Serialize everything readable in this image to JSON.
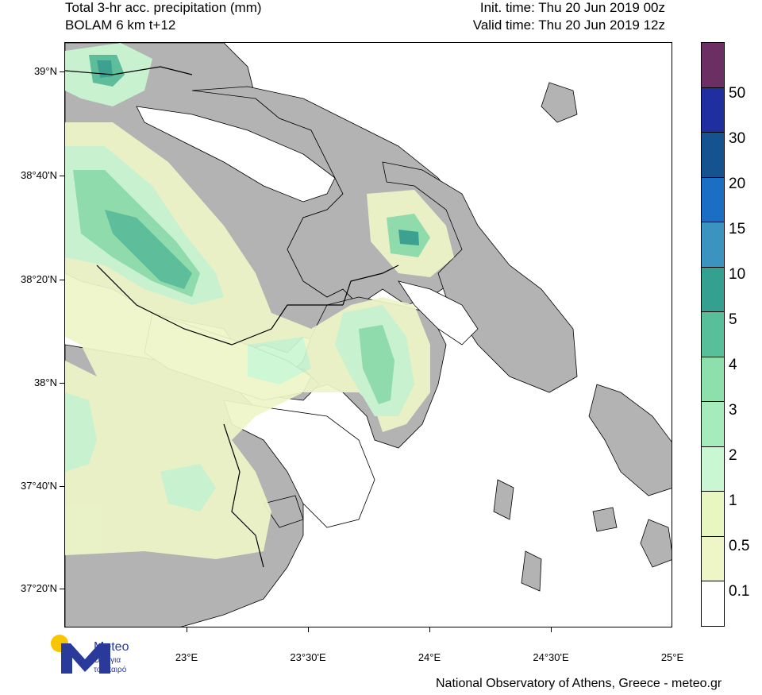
{
  "header": {
    "title_line1": "Total 3-hr acc. precipitation (mm)",
    "title_line2": "BOLAM 6 km t+12",
    "init_time": "Init. time: Thu 20 Jun 2019 00z",
    "valid_time": "Valid time: Thu 20 Jun 2019 12z"
  },
  "axes": {
    "lat_labels": [
      "39°N",
      "38°40'N",
      "38°20'N",
      "38°N",
      "37°40'N",
      "37°20'N"
    ],
    "lon_labels": [
      "23°E",
      "23°30'E",
      "24°E",
      "24°30'E",
      "25°E"
    ]
  },
  "legend": {
    "levels": [
      "0.1",
      "0.5",
      "1",
      "2",
      "3",
      "4",
      "5",
      "10",
      "15",
      "20",
      "30",
      "50"
    ],
    "colors": [
      "#ffffff",
      "#eef6c8",
      "#e8f7c0",
      "#c9f7d2",
      "#a6ecbb",
      "#8ddfab",
      "#57bf9a",
      "#34a08f",
      "#3b93c0",
      "#1a6fc4",
      "#14538f",
      "#1f2fa0",
      "#6b2f63"
    ]
  },
  "map": {
    "land_color": "#b3b3b3",
    "sea_color": "#ffffff",
    "border_color": "#000000"
  },
  "logo": {
    "name": "Meteo",
    "subtitle_line1": "Όλα για",
    "subtitle_line2": "τον καιρό",
    "sun_color": "#f7c600",
    "brand_color": "#2a3a9a"
  },
  "footer": {
    "credit": "National Observatory of Athens, Greece - meteo.gr"
  }
}
